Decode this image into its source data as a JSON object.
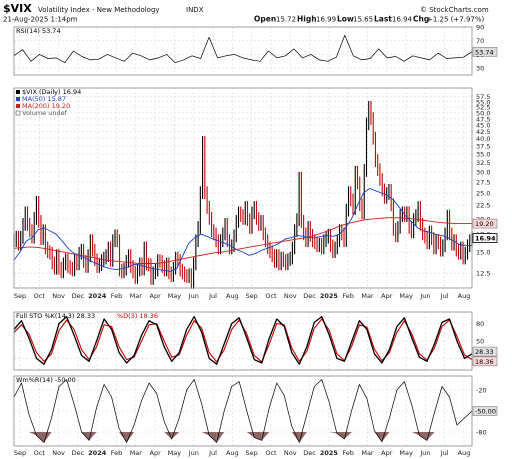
{
  "header": {
    "symbol": "$VIX",
    "name": "Volatility Index - New Methodology",
    "exchange": "INDX",
    "date": "21-Aug-2025 1:14pm",
    "brand": "© StockCharts.com",
    "open_label": "Open",
    "open": "15.72",
    "high_label": "High",
    "high": "16.99",
    "low_label": "Low",
    "low": "15.65",
    "last_label": "Last",
    "last": "16.94",
    "chg_label": "Chg",
    "chg": "+1.25 (+7.97%)"
  },
  "colors": {
    "price_up": "#000000",
    "price_down": "#cc0000",
    "ma_fast": "#1f3fbf",
    "ma_slow": "#cc2020",
    "rsi": "#000000",
    "sto_k": "#000000",
    "sto_d": "#cc0000",
    "wr": "#000000",
    "wr_fill": "#7a4a4a"
  },
  "chart_data": [
    {
      "type": "line",
      "panel": "rsi",
      "legend": "RSI(14) 53.74",
      "ylim": [
        20,
        90
      ],
      "y_ticks": [
        "90",
        "70",
        "50",
        "30"
      ],
      "last_badge": "53.74",
      "series": [
        {
          "name": "RSI(14)",
          "values": [
            48,
            57,
            40,
            50,
            44,
            45,
            38,
            55,
            47,
            42,
            43,
            50,
            45,
            40,
            52,
            48,
            42,
            45,
            50,
            38,
            42,
            48,
            44,
            75,
            45,
            48,
            50,
            45,
            42,
            40,
            55,
            45,
            48,
            58,
            45,
            50,
            42,
            40,
            46,
            78,
            48,
            42,
            44,
            58,
            45,
            47,
            40,
            48,
            45,
            42,
            52,
            44,
            45,
            46,
            54
          ]
        }
      ]
    },
    {
      "type": "line",
      "panel": "price",
      "legend": [
        {
          "label": "$VIX (Daily) 16.94",
          "color": "#000000"
        },
        {
          "label": "MA(50) 15.87",
          "color": "#1f3fbf"
        },
        {
          "label": "MA(200) 19.20",
          "color": "#cc2020"
        },
        {
          "label": "Volume undef",
          "color": "#555555"
        }
      ],
      "log_scale": true,
      "ylim": [
        11,
        62
      ],
      "y_ticks": [
        "57.5",
        "55.0",
        "52.5",
        "50.0",
        "47.5",
        "45.0",
        "42.5",
        "40.0",
        "37.5",
        "35.0",
        "32.5",
        "30.0",
        "27.5",
        "25.0",
        "22.5",
        "20.0",
        "17.5",
        "15.0",
        "12.5"
      ],
      "last_badges": [
        "19.20",
        "16.94"
      ],
      "series": [
        {
          "name": "$VIX (Daily)",
          "values": [
            16.5,
            17,
            16,
            17,
            19,
            21,
            19,
            18,
            17,
            20,
            23,
            19.5,
            16.8,
            18,
            15.5,
            15,
            14.8,
            13.6,
            13,
            14.5,
            13,
            12.6,
            13.5,
            14,
            13.2,
            13,
            12.8,
            14,
            13.5,
            14.8,
            15.2,
            13.8,
            13.2,
            14.5,
            16.5,
            15.2,
            14,
            13.2,
            13.4,
            13.9,
            14.2,
            14.5,
            15.5,
            13.9,
            16.5,
            17.2,
            16.5,
            12.8,
            12.6,
            12.9,
            13.8,
            14.5,
            13.2,
            12.6,
            12,
            12.8,
            13.5,
            12.9,
            15.5,
            13.5,
            13.4,
            11.9,
            12.5,
            12.8,
            13.9,
            13.8,
            13.2,
            12.8,
            13.5,
            12.5,
            12.2,
            13,
            14.2,
            13.9,
            12.8,
            12.5,
            12.2,
            12.1,
            12.3,
            11.5,
            13.5,
            16.5,
            18.5,
            25,
            38.6,
            25,
            22,
            20,
            18,
            17.5,
            16.5,
            15.5,
            16.5,
            17.5,
            19,
            16.5,
            15.5,
            15.8,
            17.2,
            19.5,
            21,
            20.5,
            20,
            22,
            19.8,
            18.5,
            21,
            22,
            20,
            19,
            19.5,
            17.5,
            16.5,
            15.5,
            15,
            14.5,
            13.8,
            14.5,
            13.5,
            14.2,
            13.9,
            13.5,
            14,
            14.2,
            15.5,
            18,
            19.8,
            28.3,
            19.5,
            17.5,
            16.5,
            18.5,
            17.3,
            16.5,
            16.2,
            15.8,
            16,
            15.5,
            16.5,
            17,
            17.3,
            15.8,
            15,
            15.5,
            16.5,
            18,
            17.5,
            16.5,
            21.5,
            25,
            23.5,
            21.8,
            29.8,
            27.2,
            22.5,
            21,
            30.3,
            45.3,
            52.3,
            47.5,
            40,
            33,
            30.5,
            28,
            25.6,
            24,
            24.8,
            25.5,
            22.5,
            18.2,
            17.2,
            18.5,
            20.5,
            21,
            20.5,
            21,
            18.5,
            17.8,
            19.8,
            20.5,
            22,
            19,
            17.5,
            17,
            16.2,
            17.8,
            16.8,
            15.5,
            16.5,
            16.2,
            15.2,
            15.8,
            17.5,
            20.4,
            17.5,
            16,
            16.5,
            15.2,
            14.8,
            15.5,
            14.2,
            14.8,
            15.8,
            16.5,
            16.94
          ]
        },
        {
          "name": "MA(50)",
          "values": [
            14,
            15,
            16.5,
            17,
            18.2,
            18.5,
            18,
            17.5,
            16.5,
            15.5,
            14.8,
            14.5,
            14.2,
            13.8,
            13.5,
            13.2,
            13,
            12.9,
            13,
            13.2,
            13.5,
            13.4,
            13.2,
            13,
            12.9,
            12.8,
            12.7,
            13,
            14.5,
            16.2,
            17,
            17.5,
            17.2,
            16.8,
            16.5,
            16.2,
            15.8,
            15.3,
            15,
            14.6,
            14.8,
            15.2,
            15.5,
            15.8,
            16.2,
            16.8,
            17,
            17.3,
            17.2,
            17,
            17,
            17.2,
            17.3,
            17.2,
            17.5,
            18.5,
            20,
            22.5,
            25,
            26,
            25.5,
            25,
            24.5,
            23.5,
            22,
            20.5,
            19.5,
            18.5,
            18,
            17.8,
            17.5,
            17.3,
            17,
            16.5,
            16,
            15.9,
            15.87
          ]
        },
        {
          "name": "MA(200)",
          "values": [
            15.5,
            15.6,
            15.7,
            15.6,
            15.4,
            15.2,
            15,
            14.8,
            14.6,
            14.4,
            14.2,
            14,
            13.9,
            13.8,
            13.7,
            13.6,
            13.6,
            13.6,
            13.7,
            13.9,
            14.1,
            14.3,
            14.5,
            14.7,
            14.9,
            15,
            15.2,
            15.4,
            15.6,
            15.8,
            16,
            16.2,
            16.4,
            16.6,
            16.8,
            17,
            17.3,
            17.7,
            18.2,
            18.7,
            19.2,
            19.5,
            19.8,
            20,
            20.1,
            20.2,
            20.2,
            20.1,
            20,
            19.8,
            19.6,
            19.4,
            19.3,
            19.2,
            19.2,
            19.2
          ]
        }
      ]
    },
    {
      "type": "line",
      "panel": "stochastic",
      "legend": [
        {
          "label": "Full STO %K(14,3) 28.33",
          "color": "#000000"
        },
        {
          "label": "%D(3) 18.36",
          "color": "#cc0000"
        }
      ],
      "ylim": [
        0,
        100
      ],
      "y_ticks": [
        "80",
        "50",
        "20"
      ],
      "last_badges": [
        "28.33",
        "18.36"
      ],
      "series": [
        {
          "name": "%K(14,3)",
          "values": [
            70,
            85,
            55,
            20,
            10,
            35,
            80,
            92,
            60,
            25,
            15,
            50,
            88,
            70,
            30,
            12,
            25,
            60,
            85,
            78,
            40,
            15,
            30,
            70,
            92,
            65,
            20,
            10,
            45,
            80,
            90,
            55,
            18,
            12,
            55,
            88,
            75,
            30,
            10,
            40,
            82,
            92,
            60,
            20,
            15,
            50,
            85,
            70,
            28,
            12,
            35,
            75,
            90,
            55,
            22,
            15,
            45,
            82,
            88,
            50,
            20,
            28
          ]
        },
        {
          "name": "%D(3)",
          "values": [
            65,
            78,
            62,
            30,
            15,
            28,
            68,
            86,
            70,
            35,
            18,
            40,
            78,
            75,
            40,
            18,
            22,
            50,
            78,
            80,
            50,
            22,
            26,
            60,
            85,
            72,
            30,
            14,
            35,
            70,
            86,
            62,
            25,
            14,
            45,
            80,
            78,
            38,
            15,
            32,
            72,
            88,
            68,
            28,
            16,
            42,
            78,
            74,
            36,
            16,
            30,
            65,
            85,
            62,
            28,
            17,
            38,
            75,
            86,
            58,
            26,
            18
          ]
        }
      ]
    },
    {
      "type": "area",
      "panel": "williams",
      "legend": "Wm%R(14) -50.00",
      "ylim": [
        -100,
        0
      ],
      "y_ticks": [
        "-20",
        "-50",
        "-80"
      ],
      "last_badge": "-50.00",
      "series": [
        {
          "name": "Wm%R(14)",
          "values": [
            -30,
            -10,
            -55,
            -85,
            -95,
            -60,
            -15,
            -5,
            -40,
            -80,
            -92,
            -45,
            -12,
            -30,
            -75,
            -95,
            -70,
            -35,
            -10,
            -25,
            -65,
            -90,
            -60,
            -20,
            -5,
            -40,
            -85,
            -95,
            -50,
            -15,
            -8,
            -50,
            -88,
            -92,
            -45,
            -10,
            -28,
            -72,
            -95,
            -55,
            -15,
            -5,
            -38,
            -82,
            -90,
            -48,
            -12,
            -32,
            -78,
            -94,
            -60,
            -20,
            -8,
            -42,
            -85,
            -92,
            -52,
            -15,
            -30,
            -70,
            -60,
            -50
          ]
        }
      ]
    }
  ],
  "x_axis": {
    "labels": [
      "Sep",
      "Oct",
      "Nov",
      "Dec",
      "2024",
      "Feb",
      "Mar",
      "Apr",
      "May",
      "Jun",
      "Jul",
      "Aug",
      "Sep",
      "Oct",
      "Nov",
      "Dec",
      "2025",
      "Feb",
      "Mar",
      "Apr",
      "May",
      "Jun",
      "Jul",
      "Aug"
    ],
    "bold": [
      "2024",
      "2025"
    ]
  }
}
